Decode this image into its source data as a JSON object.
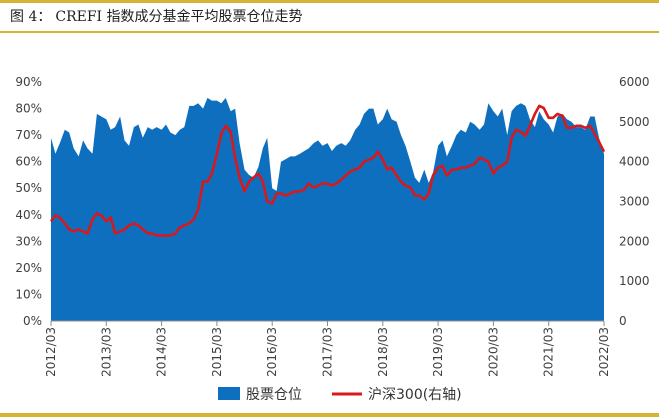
{
  "figure": {
    "label": "图 4：",
    "title": "CREFI 指数成分基金平均股票仓位走势"
  },
  "chart_data": {
    "type": "area",
    "y_left": {
      "ticks": [
        "0%",
        "10%",
        "20%",
        "30%",
        "40%",
        "50%",
        "60%",
        "70%",
        "80%",
        "90%"
      ],
      "range": [
        0,
        90
      ]
    },
    "y_right": {
      "ticks": [
        "0",
        "1000",
        "2000",
        "3000",
        "4000",
        "5000",
        "6000"
      ],
      "range": [
        0,
        6000
      ]
    },
    "x_tick_labels": [
      "2012/03",
      "2013/03",
      "2014/03",
      "2015/03",
      "2016/03",
      "2017/03",
      "2018/03",
      "2019/03",
      "2020/03",
      "2021/03",
      "2022/03"
    ],
    "x_range": [
      2012.17,
      2022.17
    ],
    "legend_position": "bottom",
    "series": [
      {
        "name": "股票仓位",
        "axis": "left",
        "type": "area",
        "color": "#0f6fbf",
        "points": [
          [
            2012.17,
            69
          ],
          [
            2012.25,
            63
          ],
          [
            2012.33,
            67
          ],
          [
            2012.42,
            72
          ],
          [
            2012.5,
            71
          ],
          [
            2012.58,
            65
          ],
          [
            2012.67,
            62
          ],
          [
            2012.75,
            68
          ],
          [
            2012.83,
            65
          ],
          [
            2012.92,
            63
          ],
          [
            2013.0,
            78
          ],
          [
            2013.08,
            77
          ],
          [
            2013.17,
            76
          ],
          [
            2013.25,
            72
          ],
          [
            2013.33,
            73
          ],
          [
            2013.42,
            77
          ],
          [
            2013.5,
            68
          ],
          [
            2013.58,
            66
          ],
          [
            2013.67,
            73
          ],
          [
            2013.75,
            74
          ],
          [
            2013.83,
            69
          ],
          [
            2013.92,
            73
          ],
          [
            2014.0,
            72
          ],
          [
            2014.08,
            73
          ],
          [
            2014.17,
            72
          ],
          [
            2014.25,
            74
          ],
          [
            2014.33,
            71
          ],
          [
            2014.42,
            70
          ],
          [
            2014.5,
            72
          ],
          [
            2014.58,
            73
          ],
          [
            2014.67,
            81
          ],
          [
            2014.75,
            81
          ],
          [
            2014.83,
            82
          ],
          [
            2014.92,
            80
          ],
          [
            2015.0,
            84
          ],
          [
            2015.08,
            83
          ],
          [
            2015.17,
            83
          ],
          [
            2015.25,
            82
          ],
          [
            2015.33,
            84
          ],
          [
            2015.42,
            79
          ],
          [
            2015.5,
            80
          ],
          [
            2015.58,
            67
          ],
          [
            2015.67,
            57
          ],
          [
            2015.75,
            55
          ],
          [
            2015.83,
            54
          ],
          [
            2015.92,
            58
          ],
          [
            2016.0,
            65
          ],
          [
            2016.08,
            69
          ],
          [
            2016.17,
            50
          ],
          [
            2016.25,
            49
          ],
          [
            2016.33,
            60
          ],
          [
            2016.42,
            61
          ],
          [
            2016.5,
            62
          ],
          [
            2016.58,
            62
          ],
          [
            2016.67,
            63
          ],
          [
            2016.75,
            64
          ],
          [
            2016.83,
            65
          ],
          [
            2016.92,
            67
          ],
          [
            2017.0,
            68
          ],
          [
            2017.08,
            66
          ],
          [
            2017.17,
            67
          ],
          [
            2017.25,
            64
          ],
          [
            2017.33,
            66
          ],
          [
            2017.42,
            67
          ],
          [
            2017.5,
            66
          ],
          [
            2017.58,
            68
          ],
          [
            2017.67,
            72
          ],
          [
            2017.75,
            74
          ],
          [
            2017.83,
            78
          ],
          [
            2017.92,
            80
          ],
          [
            2018.0,
            80
          ],
          [
            2018.08,
            74
          ],
          [
            2018.17,
            76
          ],
          [
            2018.25,
            80
          ],
          [
            2018.33,
            76
          ],
          [
            2018.42,
            75
          ],
          [
            2018.5,
            70
          ],
          [
            2018.58,
            66
          ],
          [
            2018.67,
            60
          ],
          [
            2018.75,
            54
          ],
          [
            2018.83,
            52
          ],
          [
            2018.92,
            57
          ],
          [
            2019.0,
            52
          ],
          [
            2019.08,
            56
          ],
          [
            2019.17,
            66
          ],
          [
            2019.25,
            68
          ],
          [
            2019.33,
            62
          ],
          [
            2019.42,
            66
          ],
          [
            2019.5,
            70
          ],
          [
            2019.58,
            72
          ],
          [
            2019.67,
            71
          ],
          [
            2019.75,
            75
          ],
          [
            2019.83,
            74
          ],
          [
            2019.92,
            72
          ],
          [
            2020.0,
            74
          ],
          [
            2020.08,
            82
          ],
          [
            2020.17,
            79
          ],
          [
            2020.25,
            77
          ],
          [
            2020.33,
            80
          ],
          [
            2020.42,
            70
          ],
          [
            2020.5,
            79
          ],
          [
            2020.58,
            81
          ],
          [
            2020.67,
            82
          ],
          [
            2020.75,
            81
          ],
          [
            2020.83,
            76
          ],
          [
            2020.92,
            73
          ],
          [
            2021.0,
            79
          ],
          [
            2021.08,
            76
          ],
          [
            2021.17,
            74
          ],
          [
            2021.25,
            71
          ],
          [
            2021.33,
            77
          ],
          [
            2021.42,
            78
          ],
          [
            2021.5,
            76
          ],
          [
            2021.58,
            75
          ],
          [
            2021.67,
            73
          ],
          [
            2021.75,
            73
          ],
          [
            2021.83,
            72
          ],
          [
            2021.92,
            77
          ],
          [
            2022.0,
            77
          ],
          [
            2022.08,
            69
          ],
          [
            2022.17,
            63
          ]
        ]
      },
      {
        "name": "沪深300(右轴)",
        "axis": "right",
        "type": "line",
        "color": "#d7191c",
        "points": [
          [
            2012.17,
            2500
          ],
          [
            2012.25,
            2650
          ],
          [
            2012.33,
            2600
          ],
          [
            2012.42,
            2450
          ],
          [
            2012.5,
            2300
          ],
          [
            2012.58,
            2250
          ],
          [
            2012.67,
            2300
          ],
          [
            2012.75,
            2250
          ],
          [
            2012.83,
            2200
          ],
          [
            2012.92,
            2550
          ],
          [
            2013.0,
            2700
          ],
          [
            2013.08,
            2650
          ],
          [
            2013.17,
            2500
          ],
          [
            2013.25,
            2600
          ],
          [
            2013.33,
            2200
          ],
          [
            2013.42,
            2250
          ],
          [
            2013.5,
            2300
          ],
          [
            2013.58,
            2400
          ],
          [
            2013.67,
            2450
          ],
          [
            2013.75,
            2400
          ],
          [
            2013.83,
            2300
          ],
          [
            2013.92,
            2200
          ],
          [
            2014.0,
            2200
          ],
          [
            2014.08,
            2150
          ],
          [
            2014.17,
            2150
          ],
          [
            2014.25,
            2150
          ],
          [
            2014.33,
            2150
          ],
          [
            2014.42,
            2200
          ],
          [
            2014.5,
            2350
          ],
          [
            2014.58,
            2400
          ],
          [
            2014.67,
            2450
          ],
          [
            2014.75,
            2550
          ],
          [
            2014.83,
            2800
          ],
          [
            2014.92,
            3500
          ],
          [
            2015.0,
            3500
          ],
          [
            2015.08,
            3700
          ],
          [
            2015.17,
            4200
          ],
          [
            2015.25,
            4700
          ],
          [
            2015.33,
            4900
          ],
          [
            2015.42,
            4750
          ],
          [
            2015.5,
            4100
          ],
          [
            2015.58,
            3600
          ],
          [
            2015.67,
            3250
          ],
          [
            2015.75,
            3500
          ],
          [
            2015.83,
            3600
          ],
          [
            2015.92,
            3700
          ],
          [
            2016.0,
            3500
          ],
          [
            2016.08,
            3000
          ],
          [
            2016.17,
            2950
          ],
          [
            2016.25,
            3200
          ],
          [
            2016.33,
            3200
          ],
          [
            2016.42,
            3150
          ],
          [
            2016.5,
            3200
          ],
          [
            2016.58,
            3250
          ],
          [
            2016.67,
            3250
          ],
          [
            2016.75,
            3300
          ],
          [
            2016.83,
            3450
          ],
          [
            2016.92,
            3350
          ],
          [
            2017.0,
            3400
          ],
          [
            2017.08,
            3450
          ],
          [
            2017.17,
            3450
          ],
          [
            2017.25,
            3400
          ],
          [
            2017.33,
            3450
          ],
          [
            2017.42,
            3550
          ],
          [
            2017.5,
            3650
          ],
          [
            2017.58,
            3750
          ],
          [
            2017.67,
            3800
          ],
          [
            2017.75,
            3850
          ],
          [
            2017.83,
            4000
          ],
          [
            2017.92,
            4050
          ],
          [
            2018.0,
            4100
          ],
          [
            2018.08,
            4250
          ],
          [
            2018.17,
            4050
          ],
          [
            2018.25,
            3800
          ],
          [
            2018.33,
            3850
          ],
          [
            2018.42,
            3650
          ],
          [
            2018.5,
            3500
          ],
          [
            2018.58,
            3400
          ],
          [
            2018.67,
            3350
          ],
          [
            2018.75,
            3150
          ],
          [
            2018.83,
            3150
          ],
          [
            2018.92,
            3050
          ],
          [
            2019.0,
            3200
          ],
          [
            2019.08,
            3650
          ],
          [
            2019.17,
            3850
          ],
          [
            2019.25,
            3900
          ],
          [
            2019.33,
            3650
          ],
          [
            2019.42,
            3800
          ],
          [
            2019.5,
            3800
          ],
          [
            2019.58,
            3850
          ],
          [
            2019.67,
            3850
          ],
          [
            2019.75,
            3900
          ],
          [
            2019.83,
            3950
          ],
          [
            2019.92,
            4100
          ],
          [
            2020.0,
            4050
          ],
          [
            2020.08,
            4000
          ],
          [
            2020.17,
            3700
          ],
          [
            2020.25,
            3850
          ],
          [
            2020.33,
            3900
          ],
          [
            2020.42,
            4000
          ],
          [
            2020.5,
            4600
          ],
          [
            2020.58,
            4800
          ],
          [
            2020.67,
            4750
          ],
          [
            2020.75,
            4650
          ],
          [
            2020.83,
            4900
          ],
          [
            2020.92,
            5200
          ],
          [
            2021.0,
            5400
          ],
          [
            2021.08,
            5350
          ],
          [
            2021.17,
            5100
          ],
          [
            2021.25,
            5100
          ],
          [
            2021.33,
            5200
          ],
          [
            2021.42,
            5150
          ],
          [
            2021.5,
            4850
          ],
          [
            2021.58,
            4850
          ],
          [
            2021.67,
            4900
          ],
          [
            2021.75,
            4900
          ],
          [
            2021.83,
            4850
          ],
          [
            2021.92,
            4900
          ],
          [
            2022.0,
            4700
          ],
          [
            2022.08,
            4500
          ],
          [
            2022.17,
            4250
          ]
        ]
      }
    ]
  }
}
